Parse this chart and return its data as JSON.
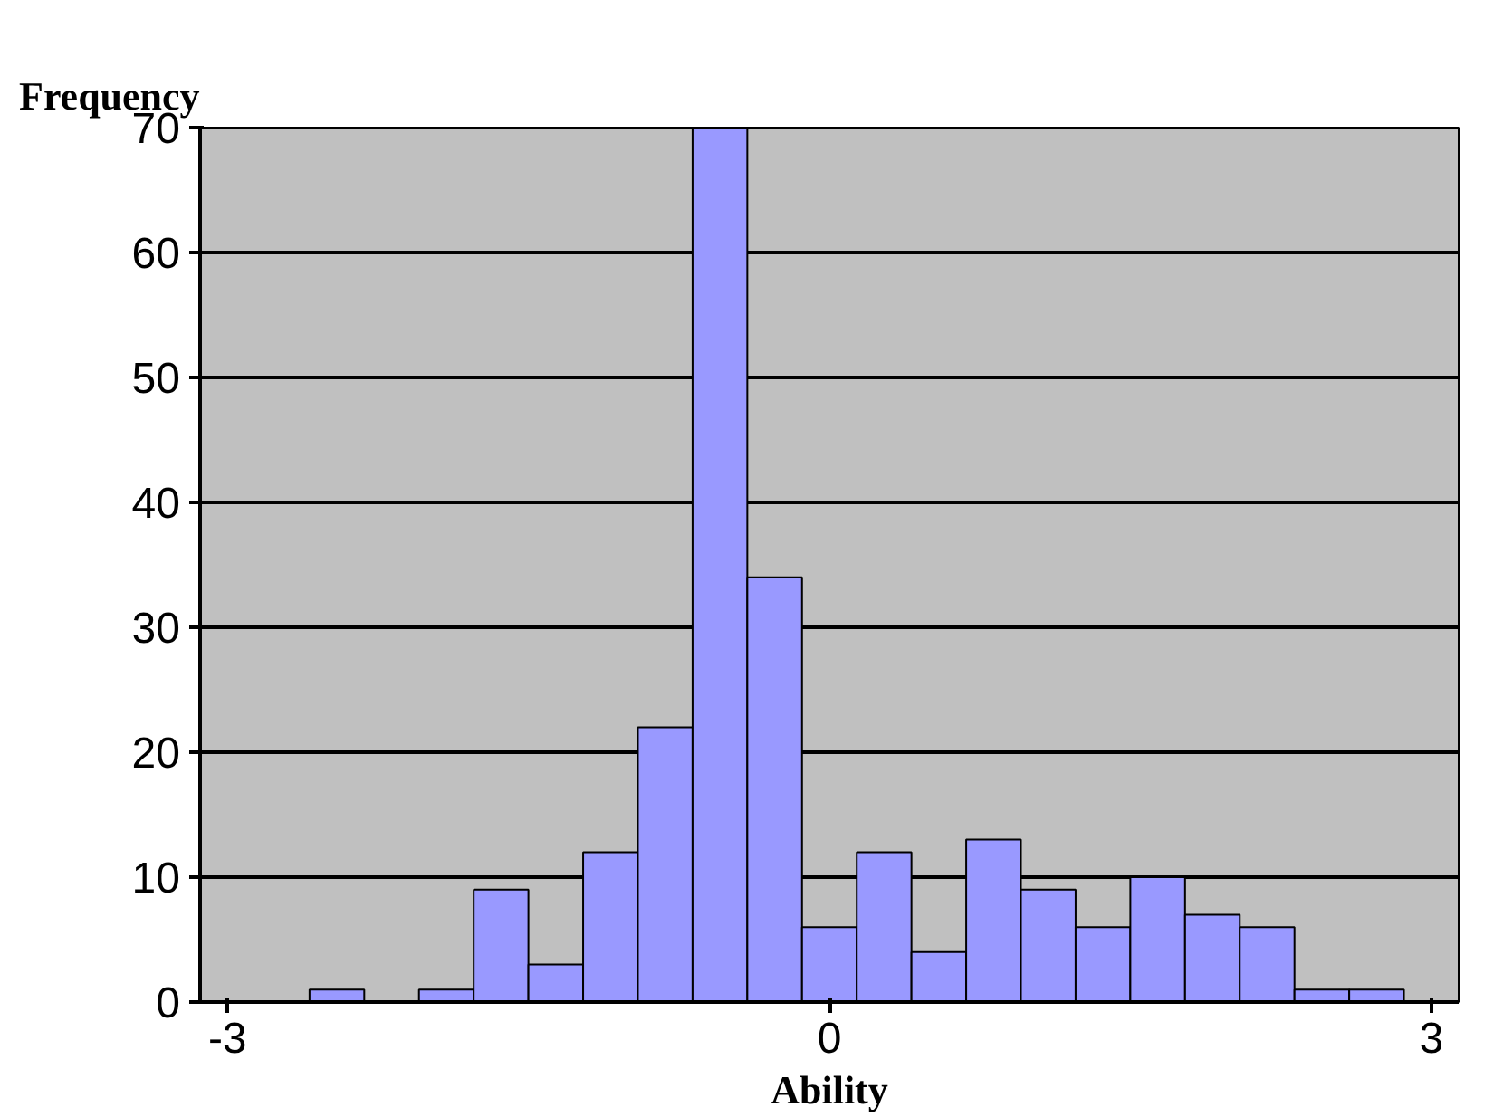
{
  "chart_data": {
    "type": "bar",
    "ylabel": "Frequency",
    "xlabel": "Ability",
    "categories": [
      "-3",
      null,
      null,
      null,
      null,
      null,
      null,
      null,
      null,
      null,
      null,
      "0",
      null,
      null,
      null,
      null,
      null,
      null,
      null,
      null,
      null,
      null,
      "3"
    ],
    "values": [
      0,
      0,
      1,
      0,
      1,
      9,
      3,
      12,
      22,
      70,
      34,
      6,
      12,
      4,
      13,
      9,
      6,
      10,
      7,
      6,
      1,
      1,
      0
    ],
    "color": "#9999ff",
    "ylim": [
      0,
      70
    ],
    "yticks": [
      0,
      10,
      20,
      30,
      40,
      50,
      60,
      70
    ],
    "grid": "y"
  }
}
